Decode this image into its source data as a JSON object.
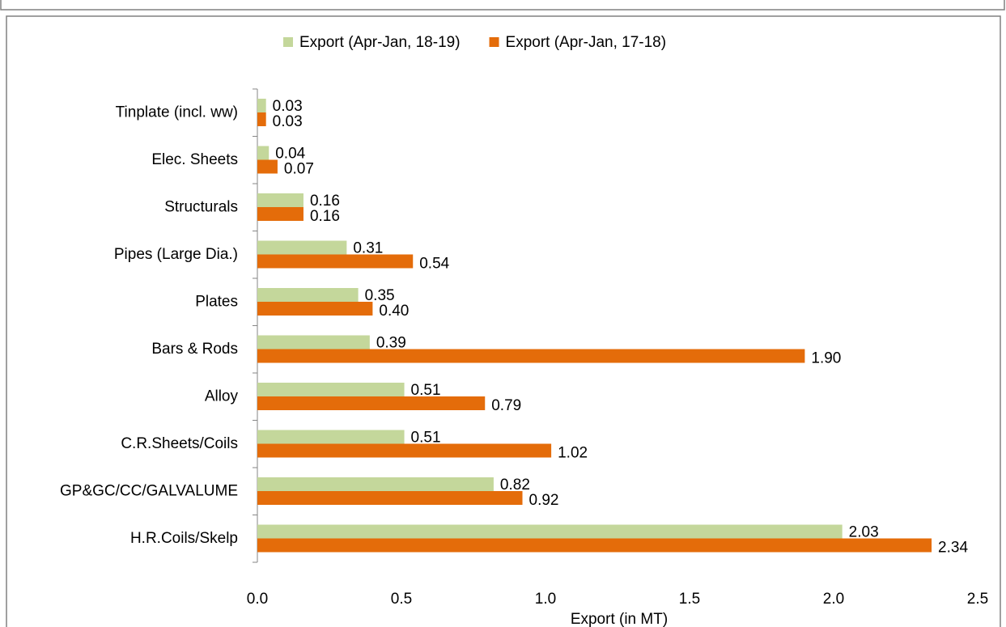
{
  "chart_data": {
    "type": "bar",
    "orientation": "horizontal",
    "xlabel": "Export (in MT)",
    "categories": [
      "Tinplate (incl. ww)",
      "Elec. Sheets",
      "Structurals",
      "Pipes (Large Dia.)",
      "Plates",
      "Bars & Rods",
      "Alloy",
      "C.R.Sheets/Coils",
      "GP&GC/CC/GALVALUME",
      "H.R.Coils/Skelp"
    ],
    "series": [
      {
        "name": "Export (Apr-Jan, 18-19)",
        "color": "#c4d79b",
        "label_color": "#4f6228",
        "values": [
          0.03,
          0.04,
          0.16,
          0.31,
          0.35,
          0.39,
          0.51,
          0.51,
          0.82,
          2.03
        ],
        "value_labels": [
          "0.03",
          "0.04",
          "0.16",
          "0.31",
          "0.35",
          "0.39",
          "0.51",
          "0.51",
          "0.82",
          "2.03"
        ]
      },
      {
        "name": "Export (Apr-Jan, 17-18)",
        "color": "#e46c0a",
        "label_color": "#984807",
        "values": [
          0.03,
          0.07,
          0.16,
          0.54,
          0.4,
          1.9,
          0.79,
          1.02,
          0.92,
          2.34
        ],
        "value_labels": [
          "0.03",
          "0.07",
          "0.16",
          "0.54",
          "0.40",
          "1.90",
          "0.79",
          "1.02",
          "0.92",
          "2.34"
        ]
      }
    ],
    "xlim": [
      0,
      2.5
    ],
    "xticks": [
      {
        "value": 0,
        "label": "0.0"
      },
      0.5,
      {
        "value": 1,
        "label": "1.0"
      },
      1.5,
      {
        "value": 2,
        "label": "2.0"
      },
      2.5
    ],
    "legend": "top"
  }
}
